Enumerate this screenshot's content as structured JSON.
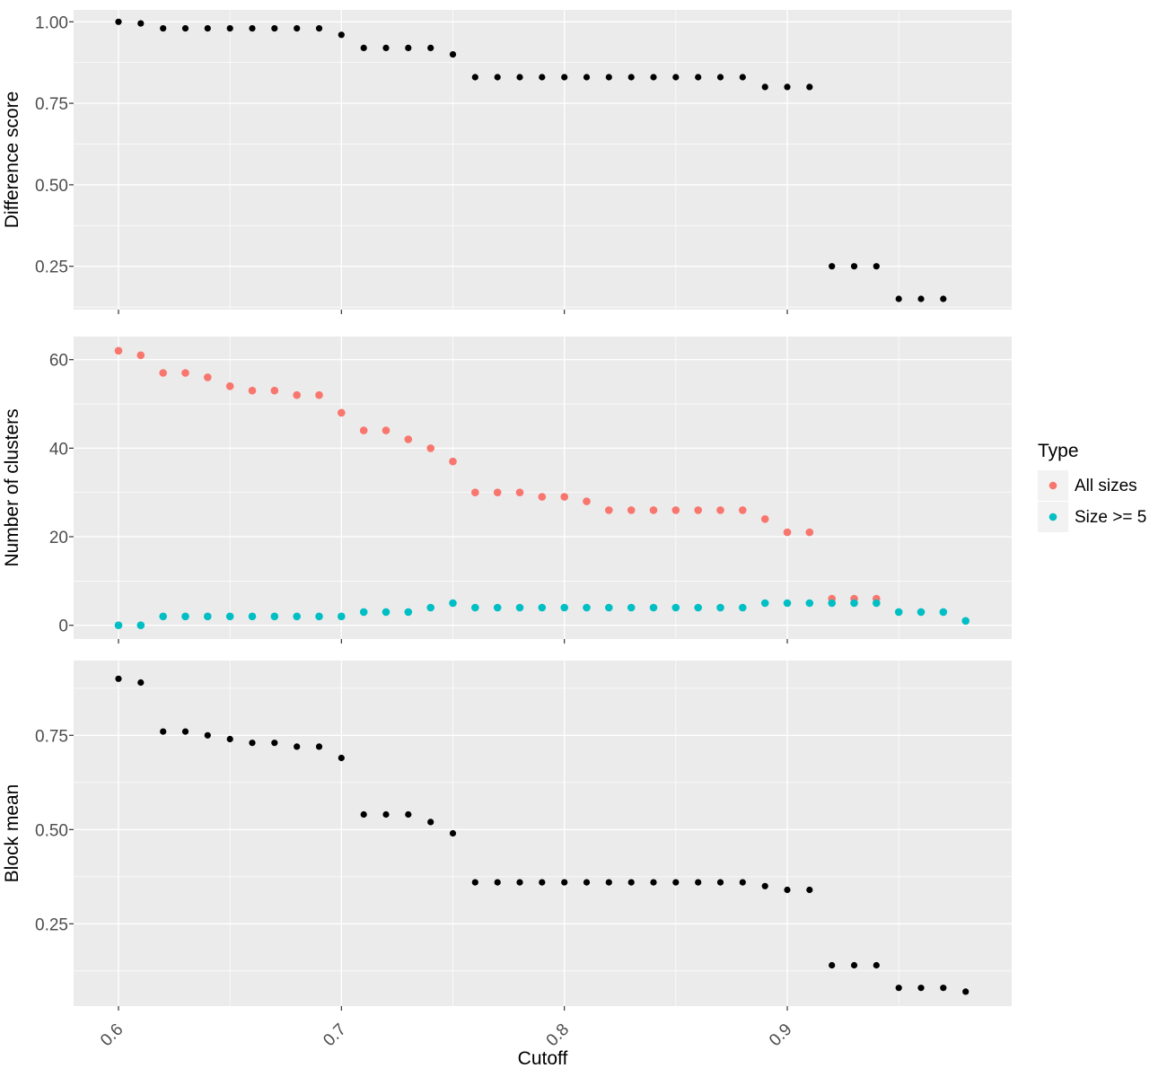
{
  "chart_data": {
    "type": "scatter",
    "title": "",
    "xlabel": "Cutoff",
    "xtick_labels": [
      "0.6",
      "0.7",
      "0.8",
      "0.9"
    ],
    "xtick_values": [
      0.6,
      0.7,
      0.8,
      0.9
    ],
    "x_minor": [
      0.65,
      0.75,
      0.85,
      0.95
    ],
    "xlim": [
      0.58,
      1.0
    ],
    "colors": {
      "panel_bg": "#EBEBEB",
      "grid": "#FFFFFF",
      "tick_mark": "#333333",
      "tick_text": "#4D4D4D",
      "axis_text": "#000000",
      "legend_key_bg": "#F2F2F2",
      "black_series": "#000000",
      "all_sizes": "#F8766D",
      "size_ge_5": "#00BFC4"
    },
    "legend": {
      "title": "Type",
      "entries": [
        {
          "label": "All sizes",
          "color": "#F8766D"
        },
        {
          "label": "Size >= 5",
          "color": "#00BFC4"
        }
      ]
    },
    "panels": [
      {
        "name": "difference-score",
        "ylabel": "Difference score",
        "yticks": [
          {
            "value": 1.0,
            "label": "1.00"
          },
          {
            "value": 0.75,
            "label": "0.75"
          },
          {
            "value": 0.5,
            "label": "0.50"
          },
          {
            "value": 0.25,
            "label": "0.25"
          }
        ],
        "y_minor": [
          0.875,
          0.625,
          0.375,
          0.125
        ],
        "series": [
          {
            "name": "difference-score-points",
            "color": "#000000",
            "radius": 3.6,
            "x": [
              0.6,
              0.61,
              0.62,
              0.63,
              0.64,
              0.65,
              0.66,
              0.67,
              0.68,
              0.69,
              0.7,
              0.71,
              0.72,
              0.73,
              0.74,
              0.75,
              0.76,
              0.77,
              0.78,
              0.79,
              0.8,
              0.81,
              0.82,
              0.83,
              0.84,
              0.85,
              0.86,
              0.87,
              0.88,
              0.89,
              0.9,
              0.91,
              0.92,
              0.93,
              0.94,
              0.95,
              0.96,
              0.97
            ],
            "y": [
              1.0,
              0.995,
              0.98,
              0.98,
              0.98,
              0.98,
              0.98,
              0.98,
              0.98,
              0.98,
              0.96,
              0.92,
              0.92,
              0.92,
              0.92,
              0.9,
              0.83,
              0.83,
              0.83,
              0.83,
              0.83,
              0.83,
              0.83,
              0.83,
              0.83,
              0.83,
              0.83,
              0.83,
              0.83,
              0.8,
              0.8,
              0.8,
              0.25,
              0.25,
              0.25,
              0.15,
              0.15,
              0.15
            ]
          }
        ]
      },
      {
        "name": "number-of-clusters",
        "ylabel": "Number of clusters",
        "yticks": [
          {
            "value": 60,
            "label": "60"
          },
          {
            "value": 40,
            "label": "40"
          },
          {
            "value": 20,
            "label": "20"
          },
          {
            "value": 0,
            "label": "0"
          }
        ],
        "y_minor": [
          50,
          30,
          10
        ],
        "series": [
          {
            "name": "all-sizes-points",
            "color": "#F8766D",
            "radius": 4.3,
            "x": [
              0.6,
              0.61,
              0.62,
              0.63,
              0.64,
              0.65,
              0.66,
              0.67,
              0.68,
              0.69,
              0.7,
              0.71,
              0.72,
              0.73,
              0.74,
              0.75,
              0.76,
              0.77,
              0.78,
              0.79,
              0.8,
              0.81,
              0.82,
              0.83,
              0.84,
              0.85,
              0.86,
              0.87,
              0.88,
              0.89,
              0.9,
              0.91,
              0.92,
              0.93,
              0.94
            ],
            "y": [
              62,
              61,
              57,
              57,
              56,
              54,
              53,
              53,
              52,
              52,
              48,
              44,
              44,
              42,
              40,
              37,
              30,
              30,
              30,
              29,
              29,
              28,
              26,
              26,
              26,
              26,
              26,
              26,
              26,
              24,
              21,
              21,
              6,
              6,
              6
            ]
          },
          {
            "name": "size-ge-5-points",
            "color": "#00BFC4",
            "radius": 4.3,
            "x": [
              0.6,
              0.61,
              0.62,
              0.63,
              0.64,
              0.65,
              0.66,
              0.67,
              0.68,
              0.69,
              0.7,
              0.71,
              0.72,
              0.73,
              0.74,
              0.75,
              0.76,
              0.77,
              0.78,
              0.79,
              0.8,
              0.81,
              0.82,
              0.83,
              0.84,
              0.85,
              0.86,
              0.87,
              0.88,
              0.89,
              0.9,
              0.91,
              0.92,
              0.93,
              0.94,
              0.95,
              0.96,
              0.97,
              0.98
            ],
            "y": [
              0,
              0,
              2,
              2,
              2,
              2,
              2,
              2,
              2,
              2,
              2,
              3,
              3,
              3,
              4,
              5,
              4,
              4,
              4,
              4,
              4,
              4,
              4,
              4,
              4,
              4,
              4,
              4,
              4,
              5,
              5,
              5,
              5,
              5,
              5,
              3,
              3,
              3,
              1
            ]
          }
        ]
      },
      {
        "name": "block-mean",
        "ylabel": "Block mean",
        "yticks": [
          {
            "value": 0.75,
            "label": "0.75"
          },
          {
            "value": 0.5,
            "label": "0.50"
          },
          {
            "value": 0.25,
            "label": "0.25"
          }
        ],
        "y_minor": [
          0.875,
          0.625,
          0.375,
          0.125
        ],
        "series": [
          {
            "name": "block-mean-points",
            "color": "#000000",
            "radius": 3.6,
            "x": [
              0.6,
              0.61,
              0.62,
              0.63,
              0.64,
              0.65,
              0.66,
              0.67,
              0.68,
              0.69,
              0.7,
              0.71,
              0.72,
              0.73,
              0.74,
              0.75,
              0.76,
              0.77,
              0.78,
              0.79,
              0.8,
              0.81,
              0.82,
              0.83,
              0.84,
              0.85,
              0.86,
              0.87,
              0.88,
              0.89,
              0.9,
              0.91,
              0.92,
              0.93,
              0.94,
              0.95,
              0.96,
              0.97,
              0.98
            ],
            "y": [
              0.9,
              0.89,
              0.76,
              0.76,
              0.75,
              0.74,
              0.73,
              0.73,
              0.72,
              0.72,
              0.69,
              0.54,
              0.54,
              0.54,
              0.52,
              0.49,
              0.36,
              0.36,
              0.36,
              0.36,
              0.36,
              0.36,
              0.36,
              0.36,
              0.36,
              0.36,
              0.36,
              0.36,
              0.36,
              0.35,
              0.34,
              0.34,
              0.14,
              0.14,
              0.14,
              0.08,
              0.08,
              0.08,
              0.07
            ]
          }
        ]
      }
    ]
  }
}
